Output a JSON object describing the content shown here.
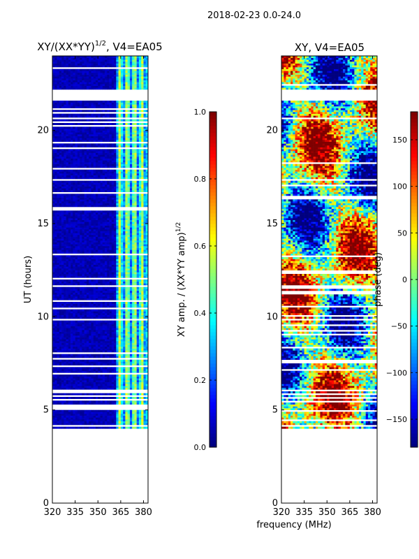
{
  "suptitle": "2018-02-23 0.0-24.0",
  "shared_xlabel": "frequency (MHz)",
  "colors": {
    "jet": [
      "#00007f",
      "#0000ff",
      "#007fff",
      "#00ffff",
      "#7fff7f",
      "#ffff00",
      "#ff7f00",
      "#ff0000",
      "#7f0000"
    ],
    "frame": "#000000",
    "background": "#ffffff"
  },
  "chart_data": [
    {
      "type": "heatmap",
      "title": "XY/(XX*YY)",
      "title_exponent": "1/2",
      "title_suffix": ", V4=EA05",
      "xlabel": "",
      "ylabel": "UT (hours)",
      "xlim": [
        320,
        383
      ],
      "ylim": [
        0,
        24
      ],
      "xticks": [
        "320",
        "335",
        "350",
        "365",
        "380"
      ],
      "yticks": [
        "0",
        "5",
        "10",
        "15",
        "20"
      ],
      "data_time_range_hours": [
        4.0,
        24.0
      ],
      "flagged_gap_hours": [
        [
          21.6,
          22.2
        ]
      ],
      "value_summary": "low amplitude (~0.0-0.1) below 362 MHz; ~0.2-0.6 between 362 and 383 MHz",
      "colorbar": {
        "label": "XY amp. / (XX*YY amp)",
        "label_exponent": "1/2",
        "range": [
          0.0,
          1.0
        ],
        "ticks": [
          "0.0",
          "0.2",
          "0.4",
          "0.6",
          "0.8",
          "1.0"
        ]
      }
    },
    {
      "type": "heatmap",
      "title": "XY, V4=EA05",
      "xlabel": "frequency (MHz)",
      "ylabel": "",
      "xlim": [
        320,
        383
      ],
      "ylim": [
        0,
        24
      ],
      "xticks": [
        "320",
        "335",
        "350",
        "365",
        "380"
      ],
      "yticks": [
        "0",
        "5",
        "10",
        "15",
        "20"
      ],
      "data_time_range_hours": [
        4.0,
        24.0
      ],
      "flagged_gap_hours": [
        [
          21.6,
          22.2
        ]
      ],
      "value_summary": "phase varies across full range, structured in frequency and time",
      "colorbar": {
        "label": "phase (deg)",
        "range": [
          -180,
          180
        ],
        "ticks": [
          "-150",
          "-100",
          "-50",
          "0",
          "50",
          "100",
          "150"
        ]
      }
    }
  ]
}
